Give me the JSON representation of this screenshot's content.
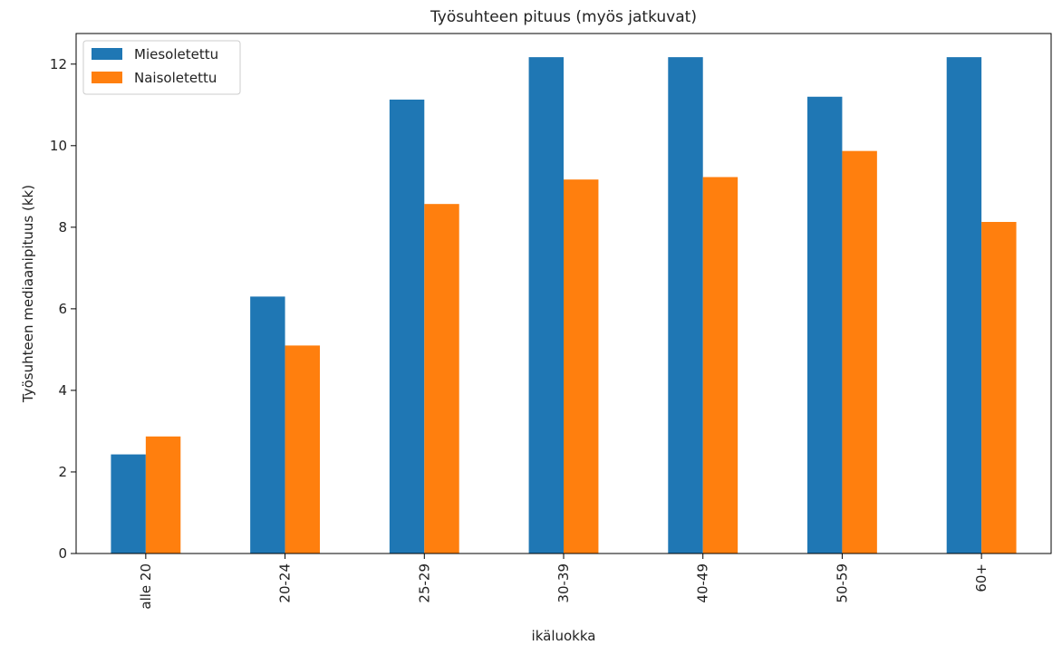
{
  "chart_data": {
    "type": "bar",
    "title": "Työsuhteen pituus (myös jatkuvat)",
    "xlabel": "ikäluokka",
    "ylabel": "Työsuhteen mediaanipituus (kk)",
    "categories": [
      "alle 20",
      "20-24",
      "25-29",
      "30-39",
      "40-49",
      "50-59",
      "60+"
    ],
    "series": [
      {
        "name": "Miesoletettu",
        "color": "#1f77b4",
        "values": [
          2.43,
          6.3,
          11.13,
          12.17,
          12.17,
          11.2,
          12.17
        ]
      },
      {
        "name": "Naisoletettu",
        "color": "#ff7f0e",
        "values": [
          2.87,
          5.1,
          8.57,
          9.17,
          9.23,
          9.87,
          8.13
        ]
      }
    ],
    "ylim": [
      0,
      12.75
    ],
    "yticks": [
      "0",
      "2",
      "4",
      "6",
      "8",
      "10",
      "12"
    ],
    "legend": "top-left",
    "grid": false
  }
}
